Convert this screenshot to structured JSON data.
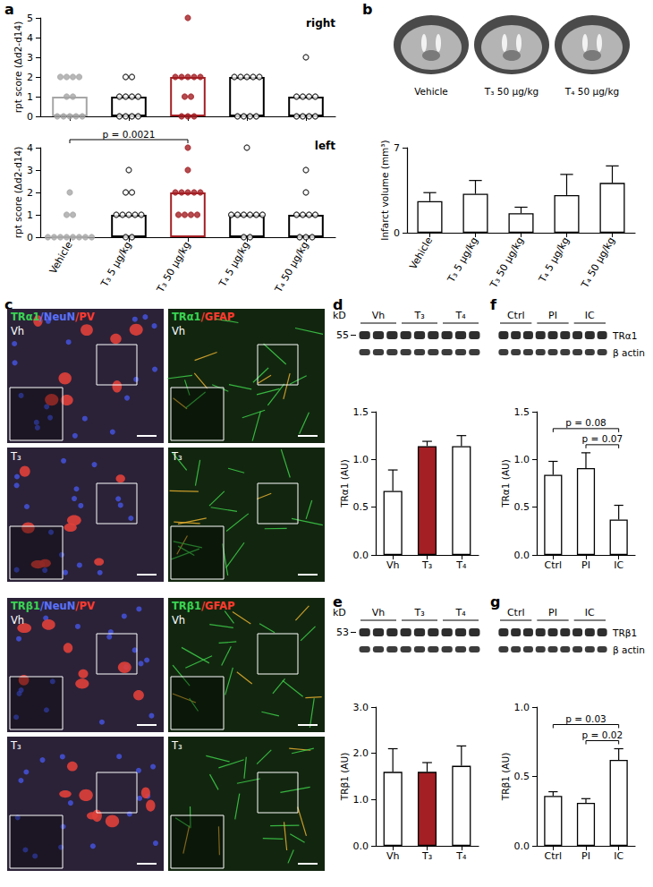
{
  "chart_data": [
    {
      "type": "bar",
      "title": "right",
      "categories": [
        "Vehicle",
        "T₃ 5 µg/kg",
        "T₃ 50 µg/kg",
        "T₄ 5 µg/kg",
        "T₄ 50 µg/kg"
      ],
      "values": [
        1,
        1,
        2,
        2,
        1
      ],
      "colors": [
        "#a6a6a6",
        "#000000",
        "#a31f24",
        "#000000",
        "#000000"
      ],
      "points": [
        [
          2,
          2,
          2,
          2,
          1,
          1,
          0,
          0,
          0,
          0,
          0
        ],
        [
          2,
          2,
          1,
          1,
          1,
          1,
          0,
          0,
          0,
          0
        ],
        [
          5,
          2,
          2,
          2,
          2,
          2,
          1,
          1,
          0,
          0,
          0
        ],
        [
          2,
          2,
          2,
          2,
          2,
          0,
          0,
          0,
          0
        ],
        [
          3,
          1,
          1,
          1,
          1,
          0,
          0,
          0,
          0
        ]
      ],
      "marker": "circle",
      "y_label": "rpt score (Δd2-d14)",
      "ylim": [
        0,
        5
      ],
      "yticks": [
        0,
        1,
        2,
        3,
        4,
        5
      ],
      "tick_labels": "y",
      "grid": false
    },
    {
      "type": "bar",
      "title": "left",
      "categories": [
        "Vehicle",
        "T₃ 5 µg/kg",
        "T₃ 50 µg/kg",
        "T₄ 5 µg/kg",
        "T₄ 50 µg/kg"
      ],
      "values": [
        0,
        1,
        2,
        1,
        1
      ],
      "colors": [
        "#a6a6a6",
        "#000000",
        "#a31f24",
        "#000000",
        "#000000"
      ],
      "points": [
        [
          2,
          1,
          1,
          0,
          0,
          0,
          0,
          0,
          0,
          0,
          0
        ],
        [
          3,
          2,
          2,
          1,
          1,
          1,
          1,
          1,
          0,
          0
        ],
        [
          4,
          3,
          2,
          2,
          2,
          2,
          2,
          1,
          1,
          1,
          1
        ],
        [
          4,
          1,
          1,
          1,
          1,
          1,
          1,
          0,
          0
        ],
        [
          3,
          2,
          1,
          1,
          1,
          1,
          0,
          0,
          0
        ]
      ],
      "marker": "circle",
      "annotations": [
        {
          "text": "p = 0.0021",
          "from": "Vehicle",
          "to": "T₃ 50 µg/kg"
        }
      ],
      "y_label": "rpt score (Δd2-d14)",
      "ylim": [
        0,
        4
      ],
      "yticks": [
        0,
        1,
        2,
        3,
        4
      ],
      "grid": false
    },
    {
      "type": "bar",
      "categories": [
        "Vehicle",
        "T₃ 5 µg/kg",
        "T₃ 50 µg/kg",
        "T₄ 5 µg/kg",
        "T₄ 50 µg/kg"
      ],
      "values": [
        2.6,
        3.2,
        1.6,
        3.1,
        4.1
      ],
      "errors": [
        0.7,
        1.1,
        0.5,
        1.7,
        1.4
      ],
      "colors": [
        "#ffffff",
        "#ffffff",
        "#ffffff",
        "#ffffff",
        "#ffffff"
      ],
      "y_label": "Infarct volume (mm³)",
      "ylim": [
        0,
        7
      ],
      "yticks": [
        0,
        7
      ],
      "grid": false
    },
    {
      "type": "bar",
      "categories": [
        "Vh",
        "T₃",
        "T₄"
      ],
      "values": [
        0.67,
        1.14,
        1.14
      ],
      "errors": [
        0.22,
        0.05,
        0.11
      ],
      "colors": [
        "#ffffff",
        "#a31f24",
        "#ffffff"
      ],
      "y_label": "TRα1 (AU)",
      "ylim": [
        0,
        1.5
      ],
      "yticks": [
        {
          "value": 0,
          "label": "0.0"
        },
        {
          "value": 0.5,
          "label": "0.5"
        },
        {
          "value": 1,
          "label": "1.0"
        },
        {
          "value": 1.5,
          "label": "1.5"
        }
      ],
      "grid": false
    },
    {
      "type": "bar",
      "categories": [
        "Vh",
        "T₃",
        "T₄"
      ],
      "values": [
        1.6,
        1.6,
        1.73
      ],
      "errors": [
        0.5,
        0.2,
        0.43
      ],
      "colors": [
        "#ffffff",
        "#a31f24",
        "#ffffff"
      ],
      "y_label": "TRβ1 (AU)",
      "ylim": [
        0,
        3
      ],
      "yticks": [
        {
          "value": 0,
          "label": "0.0"
        },
        {
          "value": 1,
          "label": "1.0"
        },
        {
          "value": 2,
          "label": "2.0"
        },
        {
          "value": 3,
          "label": "3.0"
        }
      ],
      "grid": false
    },
    {
      "type": "bar",
      "categories": [
        "Ctrl",
        "PI",
        "IC"
      ],
      "values": [
        0.84,
        0.91,
        0.37
      ],
      "errors": [
        0.14,
        0.16,
        0.15
      ],
      "colors": [
        "#ffffff",
        "#ffffff",
        "#ffffff"
      ],
      "annotations": [
        {
          "text": "p = 0.07",
          "from": "PI",
          "to": "IC"
        },
        {
          "text": "p = 0.08",
          "from": "Ctrl",
          "to": "IC"
        }
      ],
      "y_label": "TRα1 (AU)",
      "ylim": [
        0,
        1.5
      ],
      "yticks": [
        {
          "value": 0,
          "label": "0.0"
        },
        {
          "value": 0.5,
          "label": "0.5"
        },
        {
          "value": 1,
          "label": "1.0"
        },
        {
          "value": 1.5,
          "label": "1.5"
        }
      ],
      "grid": false
    },
    {
      "type": "bar",
      "categories": [
        "Ctrl",
        "PI",
        "IC"
      ],
      "values": [
        0.36,
        0.31,
        0.62
      ],
      "errors": [
        0.03,
        0.03,
        0.08
      ],
      "colors": [
        "#ffffff",
        "#ffffff",
        "#ffffff"
      ],
      "annotations": [
        {
          "text": "p = 0.02",
          "from": "PI",
          "to": "IC"
        },
        {
          "text": "p = 0.03",
          "from": "Ctrl",
          "to": "IC"
        }
      ],
      "y_label": "TRβ1 (AU)",
      "ylim": [
        0,
        1
      ],
      "yticks": [
        {
          "value": 0,
          "label": "0.0"
        },
        {
          "value": 0.5,
          "label": "0.5"
        },
        {
          "value": 1,
          "label": "1.0"
        }
      ],
      "grid": false
    }
  ],
  "letters": [
    "a",
    "b",
    "c",
    "d",
    "e",
    "f",
    "g"
  ],
  "brain_images": [
    "Vehicle",
    "T₃ 50 µg/kg",
    "T₄ 50 µg/kg"
  ],
  "micrographs": [
    {
      "stain": [
        {
          "text": "TRα1",
          "color": "#39d353"
        },
        {
          "text": "/NeuN",
          "color": "#5a72ff"
        },
        {
          "text": "/PV",
          "color": "#ff3b30"
        }
      ],
      "condition": "Vh"
    },
    {
      "stain": [
        {
          "text": "TRα1",
          "color": "#39d353"
        },
        {
          "text": "/GFAP",
          "color": "#ff3b30"
        }
      ],
      "condition": "Vh"
    },
    {
      "condition": "T₃"
    },
    {
      "condition": "T₃"
    },
    {
      "stain": [
        {
          "text": "TRβ1",
          "color": "#39d353"
        },
        {
          "text": "/NeuN",
          "color": "#5a72ff"
        },
        {
          "text": "/PV",
          "color": "#ff3b30"
        }
      ],
      "condition": "Vh"
    },
    {
      "stain": [
        {
          "text": "TRβ1",
          "color": "#39d353"
        },
        {
          "text": "/GFAP",
          "color": "#ff3b30"
        }
      ],
      "condition": "Vh"
    },
    {
      "condition": "T₃"
    },
    {
      "condition": "T₃"
    }
  ],
  "blots": [
    {
      "kd_label": "kD",
      "kd": 55,
      "groups": [
        "Vh",
        "T₃",
        "T₄"
      ]
    },
    {
      "kd_label": "kD",
      "kd": 53,
      "groups": [
        "Vh",
        "T₃",
        "T₄"
      ]
    },
    {
      "groups": [
        "Ctrl",
        "PI",
        "IC"
      ],
      "rows": [
        "TRα1",
        "β actin"
      ]
    },
    {
      "groups": [
        "Ctrl",
        "PI",
        "IC"
      ],
      "rows": [
        "TRβ1",
        "β actin"
      ]
    }
  ]
}
